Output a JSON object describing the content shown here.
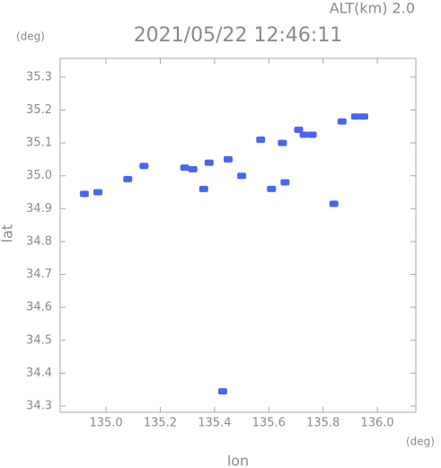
{
  "chart_data": {
    "type": "scatter",
    "title": "2021/05/22 12:46:11",
    "subtitle": "ALT(km) 2.0",
    "x_label": "lon",
    "y_label": "lat",
    "x_unit": "(deg)",
    "y_unit": "(deg)",
    "x": [
      134.92,
      134.97,
      135.08,
      135.14,
      135.29,
      135.32,
      135.36,
      135.38,
      135.45,
      135.5,
      135.57,
      135.61,
      135.66,
      135.65,
      135.71,
      135.73,
      135.76,
      135.84,
      135.87,
      135.92,
      135.95,
      135.43
    ],
    "y": [
      34.945,
      34.95,
      34.99,
      35.03,
      35.025,
      35.02,
      34.96,
      35.04,
      35.05,
      35.0,
      35.11,
      34.96,
      34.98,
      35.1,
      35.14,
      35.125,
      35.125,
      34.915,
      35.165,
      35.18,
      35.18,
      34.345
    ],
    "color": "#4a66ee",
    "xlim": [
      134.831,
      136.142
    ],
    "ylim": [
      34.281,
      35.357
    ],
    "xticks": [
      {
        "value": 135,
        "label": "135.0"
      },
      135.2,
      135.4,
      135.6,
      135.8,
      {
        "value": 136,
        "label": "136.0"
      }
    ],
    "yticks": [
      34.3,
      34.4,
      34.5,
      34.6,
      34.7,
      34.8,
      34.9,
      {
        "value": 35,
        "label": "35.0"
      },
      35.1,
      35.2,
      35.3
    ]
  }
}
